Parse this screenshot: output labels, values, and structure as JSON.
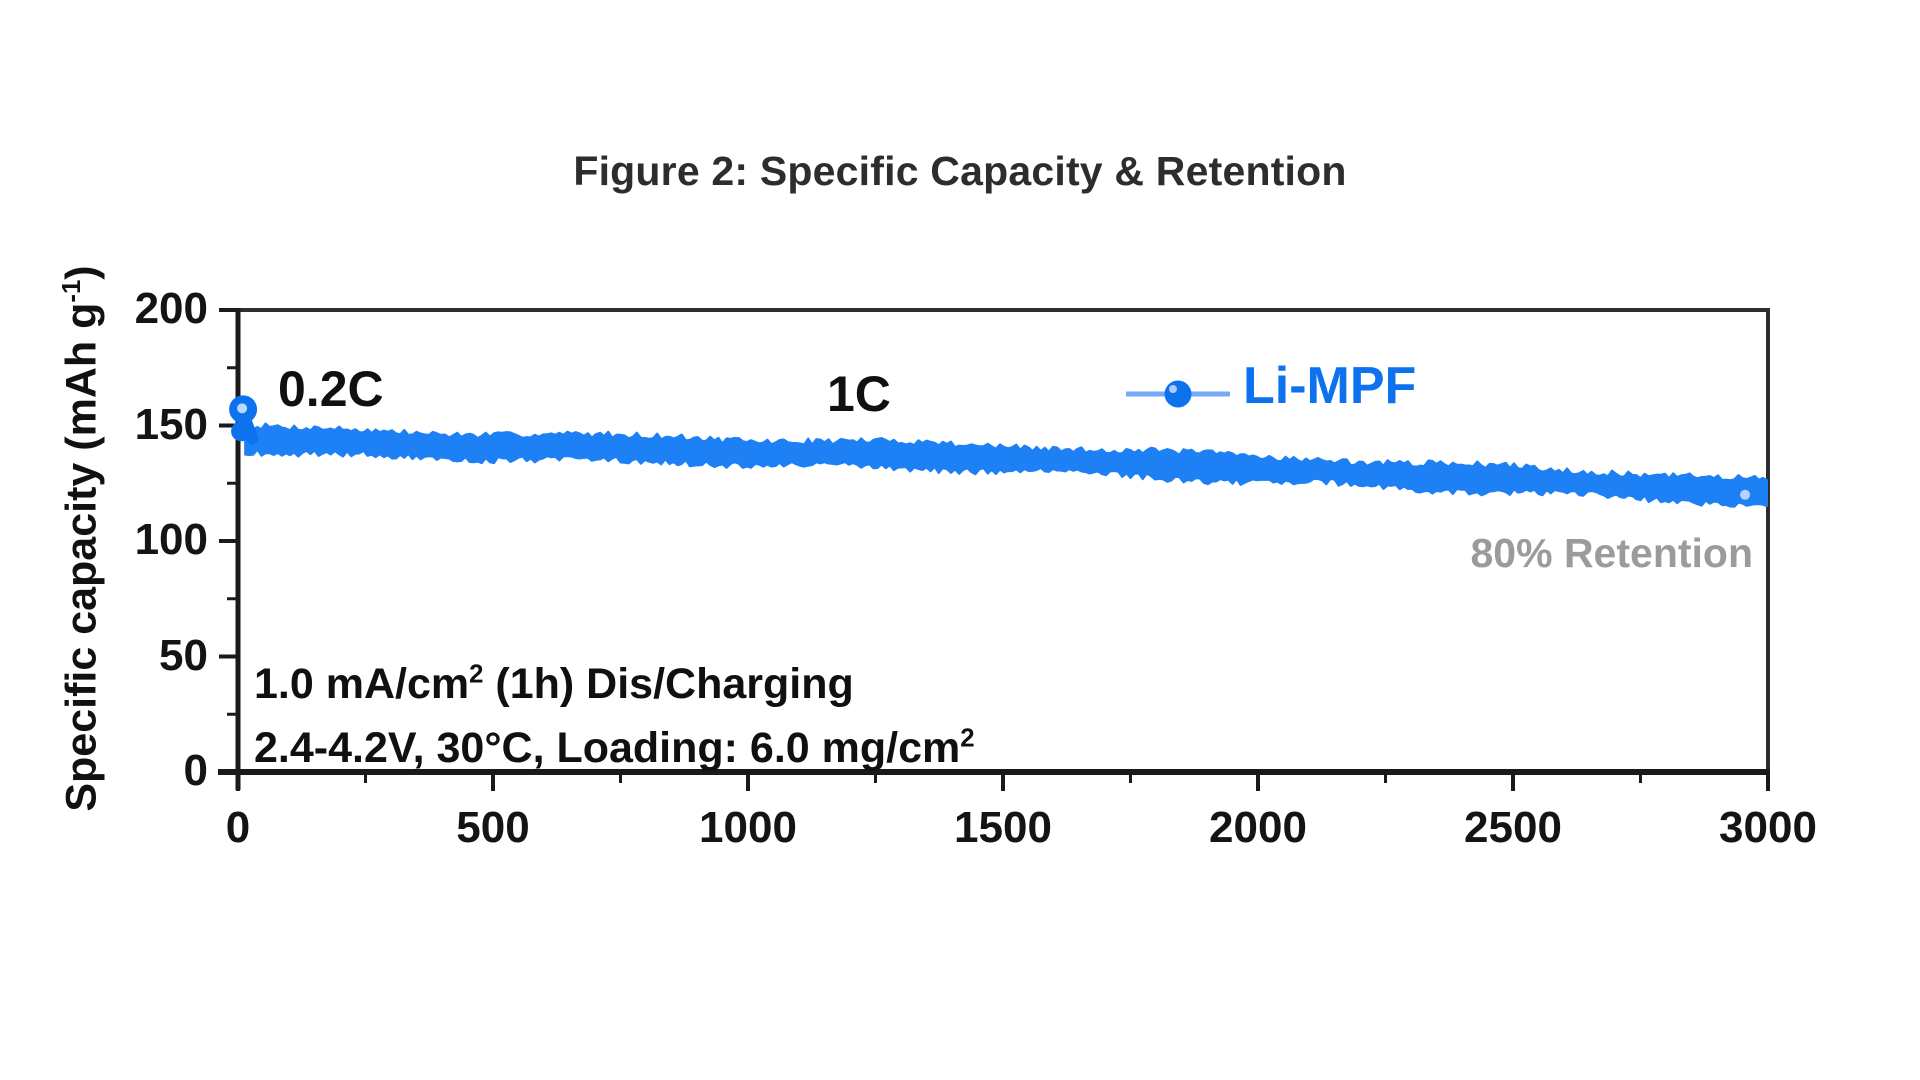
{
  "figure": {
    "title": "Figure 2: Specific Capacity & Retention"
  },
  "colors": {
    "accent": "#0e72ee",
    "band": "#1d80f4",
    "legend_line": "#76aaf6",
    "marker_highlight": "#bcd9fb",
    "axis": "#1a1a1a",
    "frame": "#2e2e2e",
    "retention_text": "#9b9b9b",
    "title_text": "#2d2d2d"
  },
  "legend": {
    "label": "Li-MPF"
  },
  "annotations": {
    "rate_initial": "0.2C",
    "rate_main": "1C",
    "retention": "80% Retention",
    "condition_line1_pre": "1.0 mA/cm",
    "condition_line1_sup": "2",
    "condition_line1_post": " (1h) Dis/Charging",
    "condition_line2_pre": "2.4-4.2V, 30°C, Loading: 6.0 mg/cm",
    "condition_line2_sup": "2"
  },
  "chart_data": {
    "type": "line",
    "title": "Figure 2: Specific Capacity & Retention",
    "xlabel": "",
    "ylabel": "Specific capacity (mAh g⁻¹)",
    "ylabel_pre": "Specific capacity (mAh g",
    "ylabel_sup": "-1",
    "ylabel_post": ")",
    "xlim": [
      0,
      3000
    ],
    "ylim": [
      0,
      200
    ],
    "x_major_ticks": [
      0,
      500,
      1000,
      1500,
      2000,
      2500,
      3000
    ],
    "x_minor_tick_step": 250,
    "y_major_ticks": [
      0,
      50,
      100,
      150,
      200
    ],
    "y_minor_tick_step": 25,
    "grid": false,
    "legend_position": "upper-right-inside",
    "series": [
      {
        "name": "Li-MPF",
        "rate_segments": [
          {
            "label": "0.2C",
            "approx_range": [
              0,
              10
            ]
          },
          {
            "label": "1C",
            "approx_range": [
              10,
              3000
            ]
          }
        ],
        "initial_point": {
          "cycle": 10,
          "capacity": 157
        },
        "points": [
          [
            14,
            144.5
          ],
          [
            100,
            143
          ],
          [
            300,
            142
          ],
          [
            500,
            141
          ],
          [
            700,
            140
          ],
          [
            900,
            139.5
          ],
          [
            1000,
            138.5
          ],
          [
            1200,
            137.5
          ],
          [
            1400,
            136.5
          ],
          [
            1500,
            136
          ],
          [
            1700,
            134
          ],
          [
            1900,
            132
          ],
          [
            2100,
            130.5
          ],
          [
            2300,
            128
          ],
          [
            2500,
            126.5
          ],
          [
            2700,
            124.5
          ],
          [
            2900,
            122
          ],
          [
            3000,
            120.5
          ]
        ],
        "noise_halfwidth": 5.5,
        "final_capacity": 120,
        "retention_note": "80% Retention"
      }
    ]
  }
}
